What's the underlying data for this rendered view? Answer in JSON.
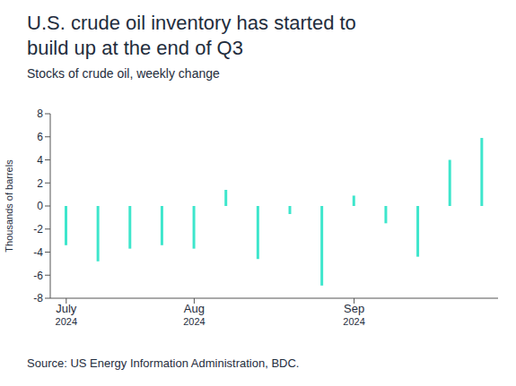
{
  "chart_data": {
    "type": "bar",
    "title": "U.S. crude oil inventory has started to build up at the end of Q3",
    "subtitle": "Stocks of crude oil, weekly change",
    "y_label": "Thousands of barrels",
    "source": "Source: US Energy Information Administration, BDC.",
    "categories": [
      "July 2024",
      null,
      null,
      null,
      "Aug 2024",
      null,
      null,
      null,
      null,
      "Sep 2024",
      null,
      null,
      null,
      null
    ],
    "values": [
      -3.4,
      -4.8,
      -3.7,
      -3.4,
      -3.7,
      1.4,
      -4.6,
      -0.7,
      -6.9,
      0.9,
      -1.5,
      -4.4,
      4.0,
      5.9
    ],
    "color": "#3ee6cc",
    "ylim": [
      -8,
      8
    ],
    "yticks": [
      -8,
      -6,
      -4,
      -2,
      0,
      2,
      4,
      6,
      8
    ],
    "grid": false
  }
}
